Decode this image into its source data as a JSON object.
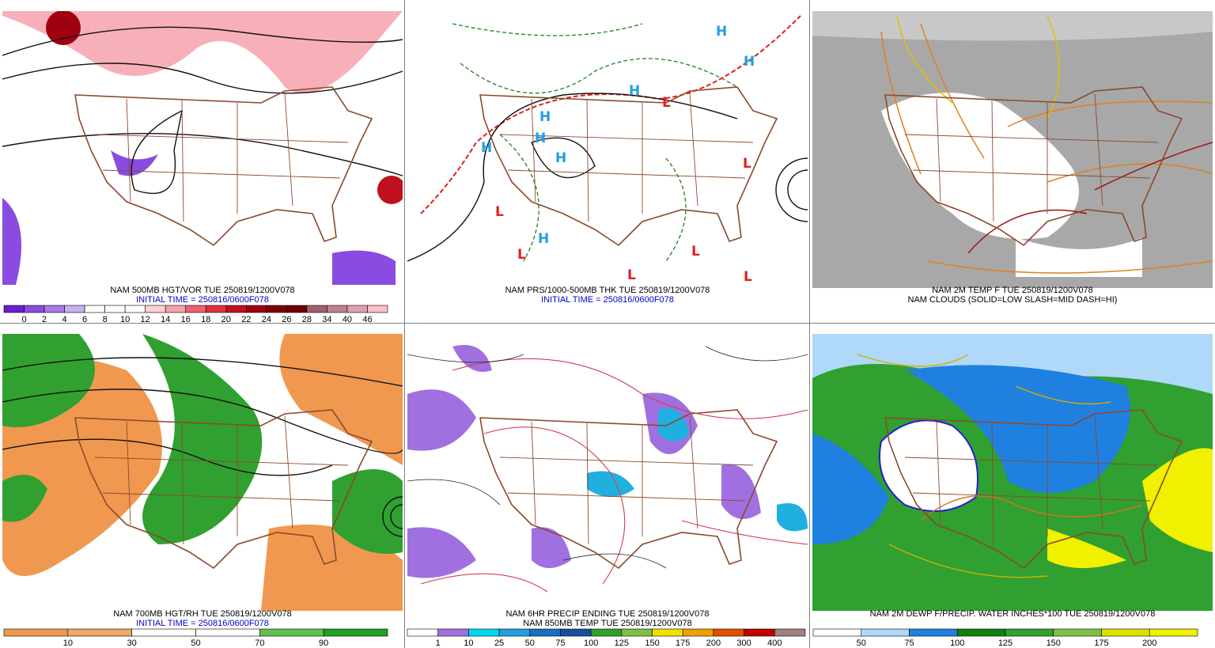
{
  "panels": [
    {
      "captions": [
        {
          "text": "NAM 500MB HGT/VOR TUE 250819/1200V078",
          "color": "#000000"
        },
        {
          "text": "INITIAL TIME = 250816/0600F078",
          "color": "#0000cc"
        }
      ],
      "colorbar": {
        "labels": [
          "0",
          "2",
          "4",
          "6",
          "8",
          "10",
          "12",
          "14",
          "16",
          "18",
          "20",
          "22",
          "24",
          "26",
          "28",
          "34",
          "40",
          "46"
        ],
        "colors": [
          "#6a1fd0",
          "#8a4be0",
          "#a77ae8",
          "#c9b0f0",
          "#ffffff",
          "#ffffff",
          "#ffffff",
          "#ffd0d0",
          "#f7a0a8",
          "#f06070",
          "#e03040",
          "#c01020",
          "#a00010",
          "#800000",
          "#700000",
          "#a06070",
          "#c08090",
          "#e0a0b0",
          "#ffc0c8"
        ]
      }
    },
    {
      "captions": [
        {
          "text": "NAM PRS/1000-500MB THK TUE 250819/1200V078",
          "color": "#000000"
        },
        {
          "text": "INITIAL TIME = 250816/0600F078",
          "color": "#0000cc"
        }
      ],
      "symbols": [
        "H",
        "H",
        "H",
        "H",
        "H",
        "H",
        "H",
        "H",
        "L",
        "L",
        "L",
        "L",
        "L",
        "L",
        "L"
      ]
    },
    {
      "captions": [
        {
          "text": "NAM 2M TEMP F TUE 250819/1200V078",
          "color": "#000000"
        },
        {
          "text": "NAM CLOUDS (SOLID=LOW SLASH=MID DASH=HI)",
          "color": "#000000"
        }
      ]
    },
    {
      "captions": [
        {
          "text": "NAM 700MB HGT/RH TUE 250819/1200V078",
          "color": "#000000"
        },
        {
          "text": "INITIAL TIME = 250816/0600F078",
          "color": "#0000cc"
        }
      ],
      "colorbar": {
        "labels": [
          "10",
          "30",
          "50",
          "70",
          "90"
        ],
        "colors": [
          "#f09850",
          "#f0a868",
          "#ffffff",
          "#ffffff",
          "#60c050",
          "#20a020"
        ]
      }
    },
    {
      "captions": [
        {
          "text": "NAM 6HR PRECIP ENDING TUE 250819/1200V078",
          "color": "#000000"
        },
        {
          "text": "NAM 850MB TEMP TUE 250819/1200V078",
          "color": "#000000"
        }
      ],
      "colorbar": {
        "labels": [
          "1",
          "10",
          "25",
          "50",
          "75",
          "100",
          "125",
          "150",
          "175",
          "200",
          "300",
          "400"
        ],
        "colors": [
          "#ffffff",
          "#a070e0",
          "#00d8f0",
          "#20a0e0",
          "#1870c0",
          "#1850a0",
          "#30a030",
          "#80c040",
          "#f0e000",
          "#f0a000",
          "#e05000",
          "#c00000",
          "#a08080"
        ]
      }
    },
    {
      "captions": [
        {
          "text": "NAM 2M DEWP F/PRECIP. WATER INCHES*100 TUE 250819/1200V078",
          "color": "#000000"
        }
      ],
      "colorbar": {
        "labels": [
          "50",
          "75",
          "100",
          "125",
          "150",
          "175",
          "200"
        ],
        "colors": [
          "#ffffff",
          "#b0d8f8",
          "#2080e0",
          "#108010",
          "#30a030",
          "#80c040",
          "#e0e000",
          "#f0f000"
        ]
      }
    }
  ]
}
